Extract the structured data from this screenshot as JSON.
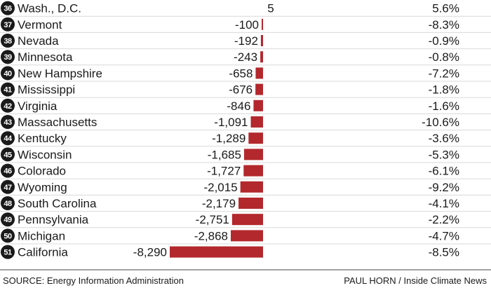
{
  "chart_data": {
    "type": "bar",
    "orientation": "horizontal",
    "rows": [
      {
        "rank": "36",
        "state": "Wash., D.C.",
        "value": 5,
        "value_label": "5",
        "pct": "5.6%"
      },
      {
        "rank": "37",
        "state": "Vermont",
        "value": -100,
        "value_label": "-100",
        "pct": "-8.3%"
      },
      {
        "rank": "38",
        "state": "Nevada",
        "value": -192,
        "value_label": "-192",
        "pct": "-0.9%"
      },
      {
        "rank": "39",
        "state": "Minnesota",
        "value": -243,
        "value_label": "-243",
        "pct": "-0.8%"
      },
      {
        "rank": "40",
        "state": "New Hampshire",
        "value": -658,
        "value_label": "-658",
        "pct": "-7.2%"
      },
      {
        "rank": "41",
        "state": "Mississippi",
        "value": -676,
        "value_label": "-676",
        "pct": "-1.8%"
      },
      {
        "rank": "42",
        "state": "Virginia",
        "value": -846,
        "value_label": "-846",
        "pct": "-1.6%"
      },
      {
        "rank": "43",
        "state": "Massachusetts",
        "value": -1091,
        "value_label": "-1,091",
        "pct": "-10.6%"
      },
      {
        "rank": "44",
        "state": "Kentucky",
        "value": -1289,
        "value_label": "-1,289",
        "pct": "-3.6%"
      },
      {
        "rank": "45",
        "state": "Wisconsin",
        "value": -1685,
        "value_label": "-1,685",
        "pct": "-5.3%"
      },
      {
        "rank": "46",
        "state": "Colorado",
        "value": -1727,
        "value_label": "-1,727",
        "pct": "-6.1%"
      },
      {
        "rank": "47",
        "state": "Wyoming",
        "value": -2015,
        "value_label": "-2,015",
        "pct": "-9.2%"
      },
      {
        "rank": "48",
        "state": "South Carolina",
        "value": -2179,
        "value_label": "-2,179",
        "pct": "-4.1%"
      },
      {
        "rank": "49",
        "state": "Pennsylvania",
        "value": -2751,
        "value_label": "-2,751",
        "pct": "-2.2%"
      },
      {
        "rank": "50",
        "state": "Michigan",
        "value": -2868,
        "value_label": "-2,868",
        "pct": "-4.7%"
      },
      {
        "rank": "51",
        "state": "California",
        "value": -8290,
        "value_label": "-8,290",
        "pct": "-8.5%"
      }
    ],
    "bar_color": "#b3282d"
  },
  "footer": {
    "source": "SOURCE: Energy Information Administration",
    "credit": "PAUL HORN / Inside Climate News"
  }
}
